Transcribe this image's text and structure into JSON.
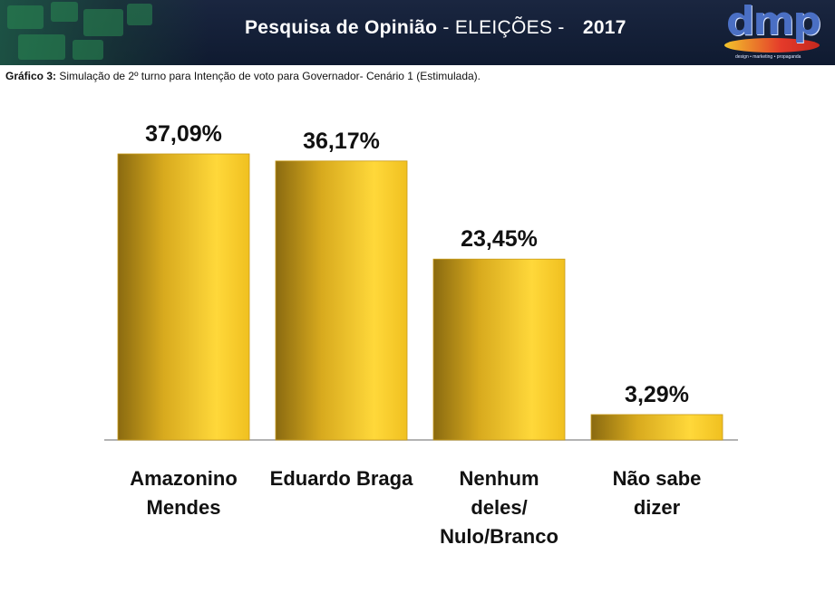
{
  "header": {
    "title_strong": "Pesquisa de Opinião",
    "title_light": " - ELEIÇÕES - ",
    "year": "2017",
    "logo_word": "dmp",
    "logo_tagline": "design • marketing • propaganda"
  },
  "caption": {
    "label": "Gráfico 3:",
    "text": " Simulação de 2º turno para Intenção de voto para Governador- Cenário 1 (Estimulada)."
  },
  "colors": {
    "header_bg": "#13203a",
    "bar_light": "#ffd83a",
    "bar_dark": "#8a6a10",
    "axis": "#9a9a9a",
    "text": "#111111"
  },
  "chart_data": {
    "type": "bar",
    "categories": [
      [
        "Amazonino",
        "Mendes"
      ],
      [
        "Eduardo Braga"
      ],
      [
        "Nenhum",
        "deles/",
        "Nulo/Branco"
      ],
      [
        "Não sabe",
        "dizer"
      ]
    ],
    "values": [
      37.09,
      36.17,
      23.45,
      3.29
    ],
    "value_labels": [
      "37,09%",
      "36,17%",
      "23,45%",
      "3,29%"
    ],
    "ylim": [
      0,
      37.09
    ],
    "grid": false,
    "legend": "none"
  }
}
